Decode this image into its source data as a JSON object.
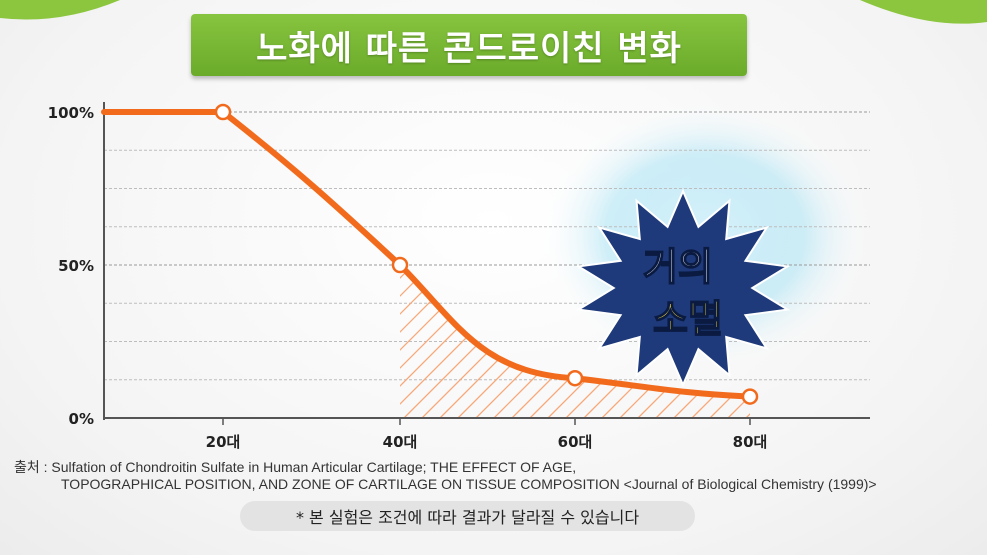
{
  "title": "노화에 따른 콘드로이친 변화",
  "chart_data": {
    "type": "line",
    "x": [
      "20대",
      "40대",
      "60대",
      "80대"
    ],
    "x_numeric": [
      20,
      40,
      60,
      80
    ],
    "series": [
      {
        "values": [
          100,
          50,
          13,
          7
        ]
      }
    ],
    "y_ticks": [
      "100%",
      "50%",
      "0%"
    ],
    "ylim": [
      0,
      100
    ],
    "grid": "dashed horizontal",
    "line_color": "#f26b1d",
    "hatch_color": "#f7a878"
  },
  "badge": {
    "line1": "거의",
    "line2": "소멸",
    "fill": "#1e3a7a",
    "text_color_1": "#ffffff",
    "text_color_2": "#ffe033"
  },
  "source": {
    "prefix": "출처 : Sulfation of Chondroitin Sulfate in Human Articular Cartilage; THE EFFECT OF AGE,",
    "line2": "TOPOGRAPHICAL POSITION, AND ZONE OF CARTILAGE ON TISSUE COMPOSITION <Journal of Biological Chemistry (1999)>"
  },
  "note": "* 본 실험은 조건에 따라 결과가 달라질 수 있습니다"
}
